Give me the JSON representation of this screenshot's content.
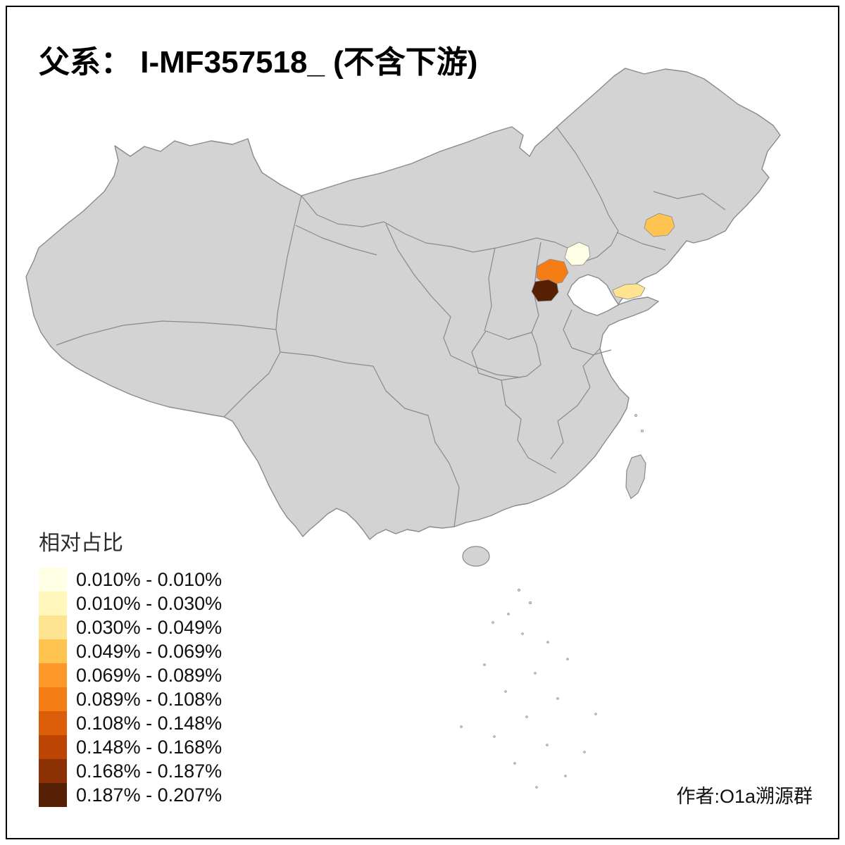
{
  "title": "父系： I-MF357518_ (不含下游)",
  "legend": {
    "title": "相对占比",
    "items": [
      {
        "label": "0.010% - 0.010%",
        "color": "#FFFFE5"
      },
      {
        "label": "0.010% - 0.030%",
        "color": "#FFF7BC"
      },
      {
        "label": "0.030% - 0.049%",
        "color": "#FEE391"
      },
      {
        "label": "0.049% - 0.069%",
        "color": "#FEC44F"
      },
      {
        "label": "0.069% - 0.089%",
        "color": "#FE9929"
      },
      {
        "label": "0.089% - 0.108%",
        "color": "#F57D15"
      },
      {
        "label": "0.108% - 0.148%",
        "color": "#DC5D0A"
      },
      {
        "label": "0.148% - 0.168%",
        "color": "#BC4504"
      },
      {
        "label": "0.168% - 0.187%",
        "color": "#8C3104"
      },
      {
        "label": "0.187% - 0.207%",
        "color": "#552004"
      }
    ]
  },
  "attribution": "作者:O1a溯源群",
  "map": {
    "base_fill": "#D3D3D3",
    "border_color": "#8A8A8A",
    "background": "#FFFFFF",
    "highlighted_regions": [
      {
        "name": "beijing-area",
        "range": "0.010% - 0.010%",
        "color": "#FFFFE5"
      },
      {
        "name": "hebei-central-area",
        "range": "0.089% - 0.108%",
        "color": "#F57D15"
      },
      {
        "name": "hebei-south-area",
        "range": "0.187% - 0.207%",
        "color": "#552004"
      },
      {
        "name": "jilin-area",
        "range": "0.049% - 0.069%",
        "color": "#FEC44F"
      },
      {
        "name": "shandong-peninsula-area",
        "range": "0.030% - 0.049%",
        "color": "#FEE391"
      }
    ]
  }
}
